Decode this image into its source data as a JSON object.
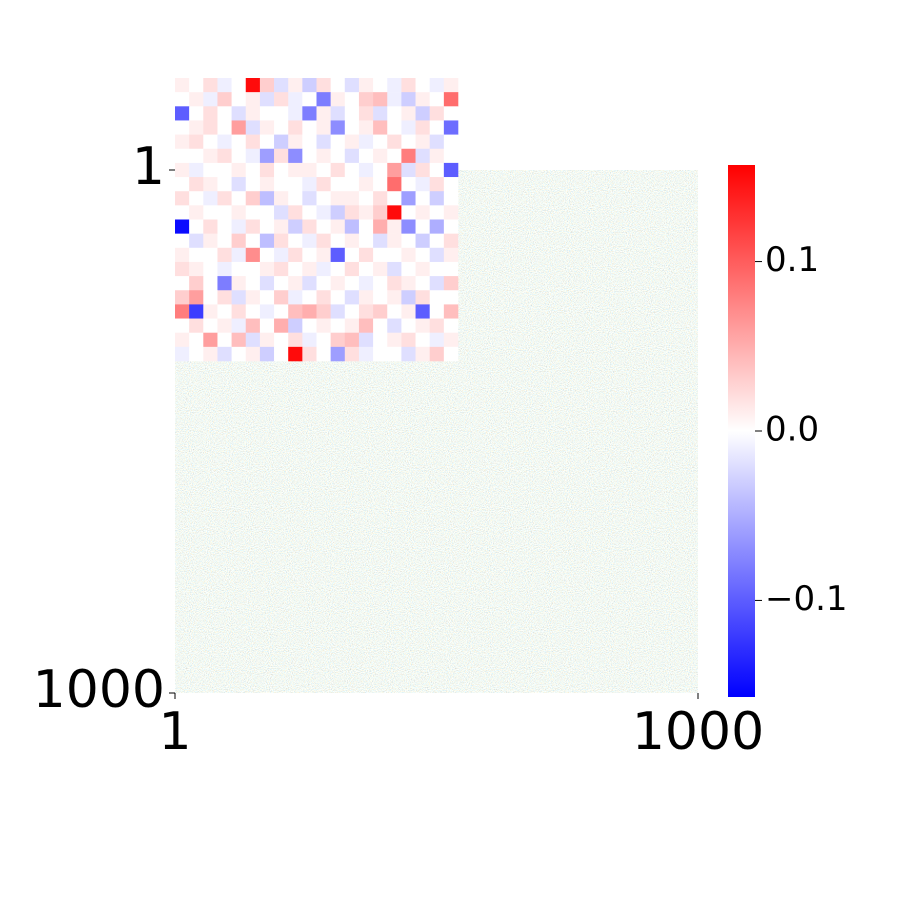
{
  "chart_data": {
    "type": "heatmap",
    "xlim": [
      1,
      1000
    ],
    "ylim": [
      1,
      1000
    ],
    "xticks": [
      1,
      1000
    ],
    "yticks": [
      1,
      1000
    ],
    "colormap": "bwr",
    "clim": [
      -0.157,
      0.157
    ],
    "cticks": [
      {
        "value": 0.1,
        "label": "0.1"
      },
      {
        "value": 0,
        "label": "0.0"
      },
      {
        "value": -0.1,
        "label": "−0.1"
      }
    ],
    "inset": {
      "values": [
        [
          0.01,
          0.0,
          0.02,
          -0.01,
          0.0,
          0.15,
          0.03,
          -0.02,
          0.01,
          -0.03,
          0.02,
          0.0,
          -0.02,
          0.01,
          0.0,
          -0.01,
          0.02,
          0.0,
          -0.01,
          0.01
        ],
        [
          0.0,
          0.01,
          -0.01,
          0.03,
          0.0,
          0.01,
          -0.02,
          0.02,
          -0.01,
          0.0,
          -0.08,
          0.01,
          0.0,
          0.03,
          0.04,
          -0.01,
          -0.03,
          0.01,
          0.0,
          0.09
        ],
        [
          -0.1,
          0.0,
          0.02,
          0.0,
          -0.02,
          0.01,
          0.0,
          0.0,
          -0.01,
          -0.08,
          0.01,
          -0.02,
          0.0,
          0.02,
          -0.02,
          0.0,
          0.01,
          -0.03,
          0.02,
          0.0
        ],
        [
          0.0,
          0.01,
          0.02,
          0.0,
          0.06,
          -0.02,
          0.01,
          0.0,
          0.02,
          0.0,
          0.01,
          -0.07,
          0.0,
          0.01,
          0.04,
          0.0,
          -0.01,
          0.02,
          0.0,
          -0.09
        ],
        [
          0.01,
          0.02,
          0.0,
          -0.01,
          0.0,
          0.02,
          0.0,
          -0.03,
          0.01,
          0.0,
          -0.02,
          0.0,
          0.01,
          -0.01,
          0.0,
          0.02,
          0.0,
          0.01,
          -0.02,
          0.0
        ],
        [
          0.0,
          0.0,
          0.01,
          0.02,
          0.0,
          -0.01,
          -0.06,
          0.02,
          -0.07,
          0.0,
          0.01,
          0.0,
          -0.02,
          0.0,
          0.01,
          0.0,
          0.08,
          -0.02,
          0.01,
          0.0
        ],
        [
          0.01,
          -0.01,
          0.0,
          0.0,
          0.01,
          0.0,
          0.02,
          0.0,
          0.01,
          0.01,
          0.0,
          0.02,
          0.0,
          -0.01,
          0.0,
          0.06,
          -0.02,
          0.02,
          0.0,
          -0.1
        ],
        [
          0.0,
          0.02,
          0.01,
          0.0,
          -0.02,
          0.0,
          0.01,
          0.0,
          0.0,
          -0.01,
          0.02,
          0.0,
          0.0,
          0.01,
          0.0,
          0.09,
          0.0,
          -0.01,
          0.02,
          0.0
        ],
        [
          0.02,
          0.0,
          -0.01,
          0.02,
          0.0,
          0.03,
          -0.04,
          0.01,
          0.0,
          -0.02,
          0.0,
          0.01,
          0.01,
          0.0,
          0.02,
          0.0,
          -0.06,
          0.0,
          -0.03,
          0.0
        ],
        [
          0.0,
          0.01,
          0.0,
          0.0,
          0.01,
          0.0,
          0.0,
          -0.02,
          0.02,
          0.0,
          -0.01,
          -0.03,
          0.02,
          0.01,
          0.03,
          0.15,
          0.0,
          0.01,
          0.0,
          0.01
        ],
        [
          -0.15,
          0.0,
          0.02,
          0.0,
          -0.01,
          0.02,
          0.0,
          0.01,
          -0.03,
          0.02,
          0.0,
          0.01,
          -0.04,
          0.0,
          0.05,
          0.01,
          -0.07,
          0.0,
          -0.05,
          0.0
        ],
        [
          0.0,
          -0.02,
          0.01,
          0.0,
          0.03,
          0.0,
          -0.04,
          0.02,
          0.0,
          -0.01,
          0.02,
          0.0,
          0.01,
          0.0,
          -0.02,
          0.01,
          0.0,
          -0.03,
          0.0,
          0.02
        ],
        [
          0.01,
          0.0,
          0.0,
          0.02,
          -0.01,
          0.07,
          0.0,
          -0.01,
          0.02,
          0.0,
          0.01,
          -0.1,
          0.0,
          0.02,
          0.0,
          0.0,
          0.01,
          0.0,
          -0.02,
          0.01
        ],
        [
          0.02,
          0.01,
          0.0,
          -0.01,
          0.0,
          0.0,
          0.01,
          0.02,
          0.0,
          0.01,
          -0.01,
          0.0,
          0.02,
          0.0,
          0.01,
          -0.02,
          0.0,
          0.01,
          0.0,
          0.0
        ],
        [
          0.0,
          0.03,
          0.0,
          -0.08,
          0.01,
          0.0,
          -0.02,
          0.0,
          0.01,
          -0.02,
          0.0,
          0.01,
          0.0,
          -0.01,
          0.0,
          0.02,
          0.01,
          0.0,
          -0.02,
          0.03
        ],
        [
          0.03,
          0.06,
          0.0,
          0.02,
          -0.02,
          0.01,
          0.0,
          0.03,
          -0.01,
          0.0,
          0.02,
          0.0,
          -0.02,
          0.01,
          0.0,
          0.01,
          -0.03,
          0.02,
          0.0,
          0.0
        ],
        [
          0.08,
          -0.12,
          0.01,
          0.0,
          0.02,
          0.0,
          -0.01,
          0.0,
          0.04,
          0.05,
          0.03,
          -0.02,
          0.0,
          0.02,
          0.03,
          0.0,
          0.01,
          -0.1,
          0.0,
          0.04
        ],
        [
          0.0,
          0.02,
          0.0,
          0.01,
          -0.01,
          0.04,
          0.0,
          0.05,
          -0.03,
          0.0,
          0.01,
          0.0,
          0.01,
          0.04,
          0.0,
          -0.02,
          0.0,
          0.01,
          0.02,
          0.0
        ],
        [
          0.01,
          0.0,
          0.06,
          0.0,
          0.04,
          -0.02,
          0.01,
          0.0,
          0.02,
          -0.01,
          0.0,
          0.03,
          0.04,
          -0.02,
          0.0,
          0.01,
          0.02,
          0.0,
          -0.01,
          0.01
        ],
        [
          -0.01,
          0.0,
          0.01,
          -0.02,
          0.0,
          0.01,
          -0.03,
          0.0,
          0.15,
          0.02,
          0.0,
          -0.06,
          0.02,
          -0.01,
          0.0,
          0.0,
          -0.02,
          0.01,
          0.03,
          0.0
        ]
      ]
    }
  }
}
